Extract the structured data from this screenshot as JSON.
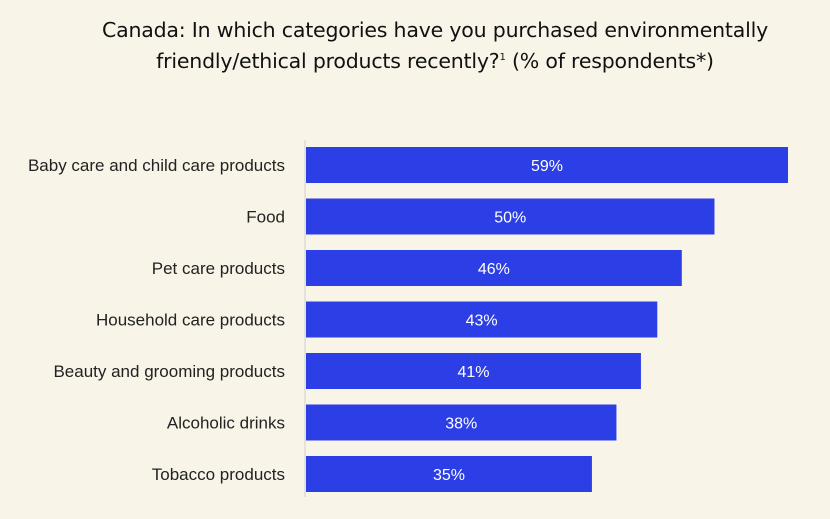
{
  "chart_data": {
    "type": "bar",
    "orientation": "horizontal",
    "title": "Canada: In which categories have you purchased environmentally friendly/ethical products recently?",
    "title_sup": "1",
    "title_suffix": "(% of respondents*)",
    "categories": [
      "Baby care and child care products",
      "Food",
      "Pet care products",
      "Household care products",
      "Beauty and grooming products",
      "Alcoholic drinks",
      "Tobacco products"
    ],
    "values": [
      59,
      50,
      46,
      43,
      41,
      38,
      35
    ],
    "value_labels": [
      "59%",
      "50%",
      "46%",
      "43%",
      "41%",
      "38%",
      "35%"
    ],
    "xlim": [
      0,
      59
    ],
    "grid": false,
    "bar_color": "#2c3fe6",
    "axis_color": "#d0d0d0"
  }
}
